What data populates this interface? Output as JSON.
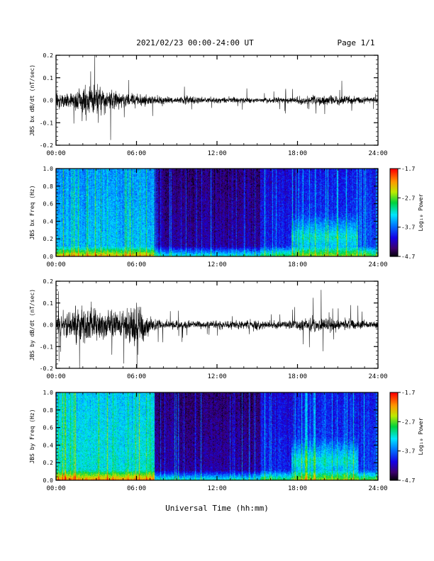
{
  "header": {
    "title": "2021/02/23  00:00-24:00 UT",
    "page": "Page 1/1"
  },
  "xlabel": "Universal Time (hh:mm)",
  "colorbar": {
    "label": "Log₁₀ Power",
    "ticks": [
      "-1.7",
      "-2.7",
      "-3.7",
      "-4.7"
    ]
  },
  "chart_data": [
    {
      "type": "line",
      "ylabel": "JBS bx dB/dt (nT/sec)",
      "xlim": [
        0,
        24
      ],
      "ylim": [
        -0.2,
        0.2
      ],
      "xticks": [
        "00:00",
        "06:00",
        "12:00",
        "18:00",
        "24:00"
      ],
      "yticks": [
        "0.2",
        "0.1",
        "0.0",
        "-0.1",
        "-0.2"
      ],
      "envelope": {
        "x": [
          0,
          1,
          2,
          3,
          4,
          5,
          6,
          7,
          8,
          9,
          10,
          11,
          12,
          13,
          14,
          15,
          16,
          17,
          18,
          19,
          20,
          21,
          22,
          23,
          24
        ],
        "amplitude": [
          0.05,
          0.06,
          0.09,
          0.12,
          0.07,
          0.05,
          0.05,
          0.04,
          0.03,
          0.02,
          0.03,
          0.02,
          0.02,
          0.02,
          0.02,
          0.015,
          0.02,
          0.02,
          0.03,
          0.03,
          0.04,
          0.03,
          0.03,
          0.025,
          0.02
        ]
      }
    },
    {
      "type": "heatmap",
      "ylabel": "JBS bx Freq (Hz)",
      "xlim": [
        0,
        24
      ],
      "ylim": [
        0,
        1.0
      ],
      "xticks": [
        "00:00",
        "06:00",
        "12:00",
        "18:00",
        "24:00"
      ],
      "yticks": [
        "1.0",
        "0.8",
        "0.6",
        "0.4",
        "0.2",
        "0.0"
      ],
      "zlim": [
        -4.7,
        -1.7
      ],
      "colorbar_label": "Log₁₀ Power"
    },
    {
      "type": "line",
      "ylabel": "JBS by dB/dt (nT/sec)",
      "xlim": [
        0,
        24
      ],
      "ylim": [
        -0.2,
        0.2
      ],
      "xticks": [
        "00:00",
        "06:00",
        "12:00",
        "18:00",
        "24:00"
      ],
      "yticks": [
        "0.2",
        "0.1",
        "0.0",
        "-0.1",
        "-0.2"
      ],
      "envelope": {
        "x": [
          0,
          1,
          2,
          3,
          4,
          5,
          6,
          7,
          8,
          9,
          10,
          11,
          12,
          13,
          14,
          15,
          16,
          17,
          18,
          19,
          20,
          21,
          22,
          23,
          24
        ],
        "amplitude": [
          0.06,
          0.12,
          0.15,
          0.12,
          0.1,
          0.09,
          0.2,
          0.06,
          0.03,
          0.03,
          0.03,
          0.025,
          0.03,
          0.03,
          0.03,
          0.04,
          0.03,
          0.03,
          0.04,
          0.05,
          0.06,
          0.04,
          0.04,
          0.03,
          0.03
        ]
      }
    },
    {
      "type": "heatmap",
      "ylabel": "JBS by Freq (Hz)",
      "xlim": [
        0,
        24
      ],
      "ylim": [
        0,
        1.0
      ],
      "xticks": [
        "00:00",
        "06:00",
        "12:00",
        "18:00",
        "24:00"
      ],
      "yticks": [
        "1.0",
        "0.8",
        "0.6",
        "0.4",
        "0.2",
        "0.0"
      ],
      "zlim": [
        -4.7,
        -1.7
      ],
      "colorbar_label": "Log₁₀ Power"
    }
  ]
}
